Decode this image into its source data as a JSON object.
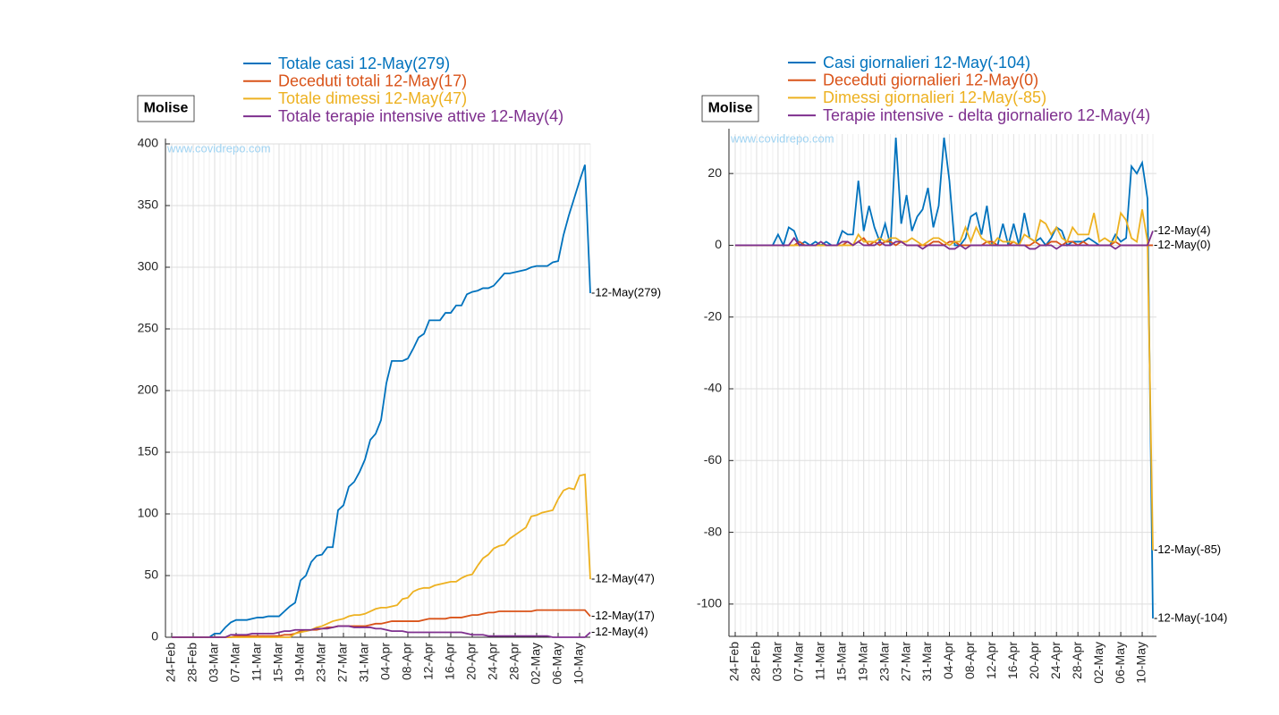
{
  "chart_data": [
    {
      "type": "line",
      "title": "Molise",
      "watermark": "www.covidrepo.com",
      "categories": [
        "24-Feb",
        null,
        null,
        null,
        "28-Feb",
        null,
        null,
        null,
        "03-Mar",
        null,
        null,
        null,
        "07-Mar",
        null,
        null,
        null,
        "11-Mar",
        null,
        null,
        null,
        "15-Mar",
        null,
        null,
        null,
        "19-Mar",
        null,
        null,
        null,
        "23-Mar",
        null,
        null,
        null,
        "27-Mar",
        null,
        null,
        null,
        "31-Mar",
        null,
        null,
        null,
        "04-Apr",
        null,
        null,
        null,
        "08-Apr",
        null,
        null,
        null,
        "12-Apr",
        null,
        null,
        null,
        "16-Apr",
        null,
        null,
        null,
        "20-Apr",
        null,
        null,
        null,
        "24-Apr",
        null,
        null,
        null,
        "28-Apr",
        null,
        null,
        null,
        "02-May",
        null,
        null,
        null,
        "06-May",
        null,
        null,
        null,
        "10-May",
        null,
        null
      ],
      "ylim": [
        0,
        400
      ],
      "yticks": [
        0,
        50,
        100,
        150,
        200,
        250,
        300,
        350,
        400
      ],
      "grid": true,
      "legend": "top",
      "series": [
        {
          "name": "Totale casi 12-May(279)",
          "color": "#0072bd",
          "end_label": "-12-May(279)",
          "values": [
            0,
            0,
            0,
            0,
            0,
            0,
            0,
            0,
            3,
            3,
            8,
            12,
            14,
            14,
            14,
            15,
            16,
            16,
            17,
            17,
            17,
            21,
            25,
            28,
            46,
            50,
            61,
            66,
            67,
            73,
            73,
            103,
            107,
            122,
            126,
            134,
            144,
            160,
            165,
            176,
            206,
            224,
            224,
            224,
            226,
            234,
            243,
            246,
            257,
            257,
            257,
            263,
            263,
            269,
            269,
            278,
            280,
            281,
            283,
            283,
            285,
            290,
            295,
            295,
            296,
            297,
            298,
            300,
            301,
            301,
            301,
            304,
            305,
            326,
            342,
            356,
            370,
            383,
            279
          ]
        },
        {
          "name": "Deceduti totali 12-May(17)",
          "color": "#d95319",
          "end_label": "-12-May(17)",
          "values": [
            0,
            0,
            0,
            0,
            0,
            0,
            0,
            0,
            0,
            0,
            0,
            0,
            1,
            1,
            1,
            1,
            1,
            1,
            1,
            1,
            1,
            2,
            2,
            3,
            5,
            5,
            6,
            6,
            7,
            8,
            8,
            9,
            9,
            9,
            9,
            9,
            9,
            10,
            11,
            11,
            12,
            13,
            13,
            13,
            13,
            13,
            13,
            14,
            15,
            15,
            15,
            15,
            16,
            16,
            16,
            17,
            18,
            18,
            19,
            20,
            20,
            21,
            21,
            21,
            21,
            21,
            21,
            21,
            22,
            22,
            22,
            22,
            22,
            22,
            22,
            22,
            22,
            22,
            17
          ]
        },
        {
          "name": "Totale dimessi 12-May(47)",
          "color": "#edb120",
          "end_label": "-12-May(47)",
          "values": [
            0,
            0,
            0,
            0,
            0,
            0,
            0,
            0,
            0,
            0,
            0,
            0,
            0,
            0,
            0,
            0,
            0,
            0,
            0,
            0,
            0,
            0,
            0,
            3,
            4,
            5,
            6,
            8,
            9,
            11,
            13,
            14,
            15,
            17,
            18,
            18,
            19,
            21,
            23,
            24,
            24,
            25,
            26,
            31,
            32,
            37,
            39,
            40,
            40,
            42,
            43,
            44,
            45,
            45,
            48,
            50,
            51,
            58,
            64,
            67,
            72,
            74,
            75,
            80,
            83,
            86,
            89,
            98,
            99,
            101,
            102,
            103,
            112,
            119,
            121,
            120,
            131,
            132,
            47
          ]
        },
        {
          "name": "Totale terapie intensive attive 12-May(4)",
          "color": "#7e2f8e",
          "end_label": "-12-May(4)",
          "values": [
            0,
            0,
            0,
            0,
            0,
            0,
            0,
            0,
            0,
            0,
            0,
            2,
            2,
            2,
            2,
            3,
            3,
            3,
            3,
            3,
            4,
            5,
            5,
            6,
            6,
            6,
            6,
            7,
            7,
            7,
            8,
            9,
            9,
            9,
            8,
            8,
            8,
            8,
            7,
            7,
            6,
            5,
            5,
            5,
            4,
            4,
            4,
            4,
            4,
            4,
            4,
            4,
            4,
            4,
            4,
            3,
            2,
            2,
            2,
            1,
            1,
            1,
            1,
            1,
            1,
            1,
            1,
            1,
            1,
            1,
            1,
            0,
            0,
            0,
            0,
            0,
            0,
            0,
            4
          ]
        }
      ]
    },
    {
      "type": "line",
      "title": "Molise",
      "watermark": "www.covidrepo.com",
      "categories": [
        "24-Feb",
        null,
        null,
        null,
        "28-Feb",
        null,
        null,
        null,
        "03-Mar",
        null,
        null,
        null,
        "07-Mar",
        null,
        null,
        null,
        "11-Mar",
        null,
        null,
        null,
        "15-Mar",
        null,
        null,
        null,
        "19-Mar",
        null,
        null,
        null,
        "23-Mar",
        null,
        null,
        null,
        "27-Mar",
        null,
        null,
        null,
        "31-Mar",
        null,
        null,
        null,
        "04-Apr",
        null,
        null,
        null,
        "08-Apr",
        null,
        null,
        null,
        "12-Apr",
        null,
        null,
        null,
        "16-Apr",
        null,
        null,
        null,
        "20-Apr",
        null,
        null,
        null,
        "24-Apr",
        null,
        null,
        null,
        "28-Apr",
        null,
        null,
        null,
        "02-May",
        null,
        null,
        null,
        "06-May",
        null,
        null,
        null,
        "10-May",
        null,
        null
      ],
      "ylim": [
        -109,
        31
      ],
      "yticks": [
        -100,
        -80,
        -60,
        -40,
        -20,
        0,
        20
      ],
      "grid": true,
      "legend": "top",
      "series": [
        {
          "name": "Casi giornalieri 12-May(-104)",
          "color": "#0072bd",
          "end_label": "-12-May(-104)",
          "values": [
            0,
            0,
            0,
            0,
            0,
            0,
            0,
            0,
            3,
            0,
            5,
            4,
            0,
            1,
            0,
            1,
            0,
            1,
            0,
            0,
            4,
            3,
            3,
            18,
            4,
            11,
            5,
            1,
            6,
            0,
            30,
            6,
            14,
            4,
            8,
            10,
            16,
            5,
            11,
            30,
            18,
            0,
            0,
            2,
            8,
            9,
            3,
            11,
            0,
            0,
            6,
            0,
            6,
            0,
            9,
            2,
            1,
            2,
            0,
            2,
            5,
            4,
            0,
            1,
            1,
            1,
            2,
            1,
            0,
            0,
            0,
            3,
            1,
            2,
            22,
            20,
            23,
            13,
            -104
          ]
        },
        {
          "name": "Deceduti giornalieri 12-May(0)",
          "color": "#d95319",
          "end_label": "-12-May(0)",
          "values": [
            0,
            0,
            0,
            0,
            0,
            0,
            0,
            0,
            0,
            0,
            0,
            0,
            1,
            0,
            0,
            0,
            0,
            0,
            0,
            0,
            0,
            1,
            0,
            1,
            2,
            0,
            1,
            0,
            1,
            1,
            0,
            1,
            0,
            0,
            0,
            0,
            0,
            1,
            1,
            0,
            1,
            1,
            0,
            0,
            0,
            0,
            0,
            1,
            1,
            0,
            0,
            0,
            1,
            0,
            0,
            0,
            1,
            0,
            0,
            1,
            1,
            0,
            1,
            1,
            0,
            1,
            0,
            0,
            0,
            0,
            0,
            1,
            0,
            0,
            0,
            0,
            0,
            0,
            0
          ]
        },
        {
          "name": "Dimessi giornalieri 12-May(-85)",
          "color": "#edb120",
          "end_label": "-12-May(-85)",
          "values": [
            0,
            0,
            0,
            0,
            0,
            0,
            0,
            0,
            0,
            0,
            0,
            0,
            0,
            0,
            0,
            0,
            0,
            0,
            0,
            0,
            0,
            0,
            0,
            3,
            1,
            1,
            1,
            2,
            1,
            2,
            2,
            1,
            1,
            2,
            1,
            0,
            1,
            2,
            2,
            1,
            0,
            1,
            1,
            5,
            1,
            5,
            2,
            1,
            0,
            2,
            1,
            1,
            1,
            0,
            3,
            2,
            1,
            7,
            6,
            3,
            5,
            2,
            1,
            5,
            3,
            3,
            3,
            9,
            1,
            2,
            1,
            1,
            9,
            7,
            2,
            1,
            10,
            1,
            -85
          ]
        },
        {
          "name": "Terapie intensive - delta giornaliero 12-May(4)",
          "color": "#7e2f8e",
          "end_label": "-12-May(4)",
          "values": [
            0,
            0,
            0,
            0,
            0,
            0,
            0,
            0,
            0,
            0,
            0,
            2,
            0,
            0,
            0,
            0,
            1,
            0,
            0,
            0,
            1,
            1,
            0,
            1,
            0,
            0,
            0,
            1,
            0,
            0,
            1,
            1,
            0,
            0,
            0,
            -1,
            0,
            0,
            0,
            0,
            -1,
            -1,
            0,
            -1,
            0,
            0,
            0,
            0,
            0,
            0,
            0,
            0,
            0,
            0,
            0,
            -1,
            -1,
            0,
            0,
            0,
            -1,
            0,
            0,
            0,
            0,
            0,
            0,
            0,
            0,
            0,
            0,
            -1,
            0,
            0,
            0,
            0,
            0,
            0,
            4
          ]
        }
      ]
    }
  ]
}
